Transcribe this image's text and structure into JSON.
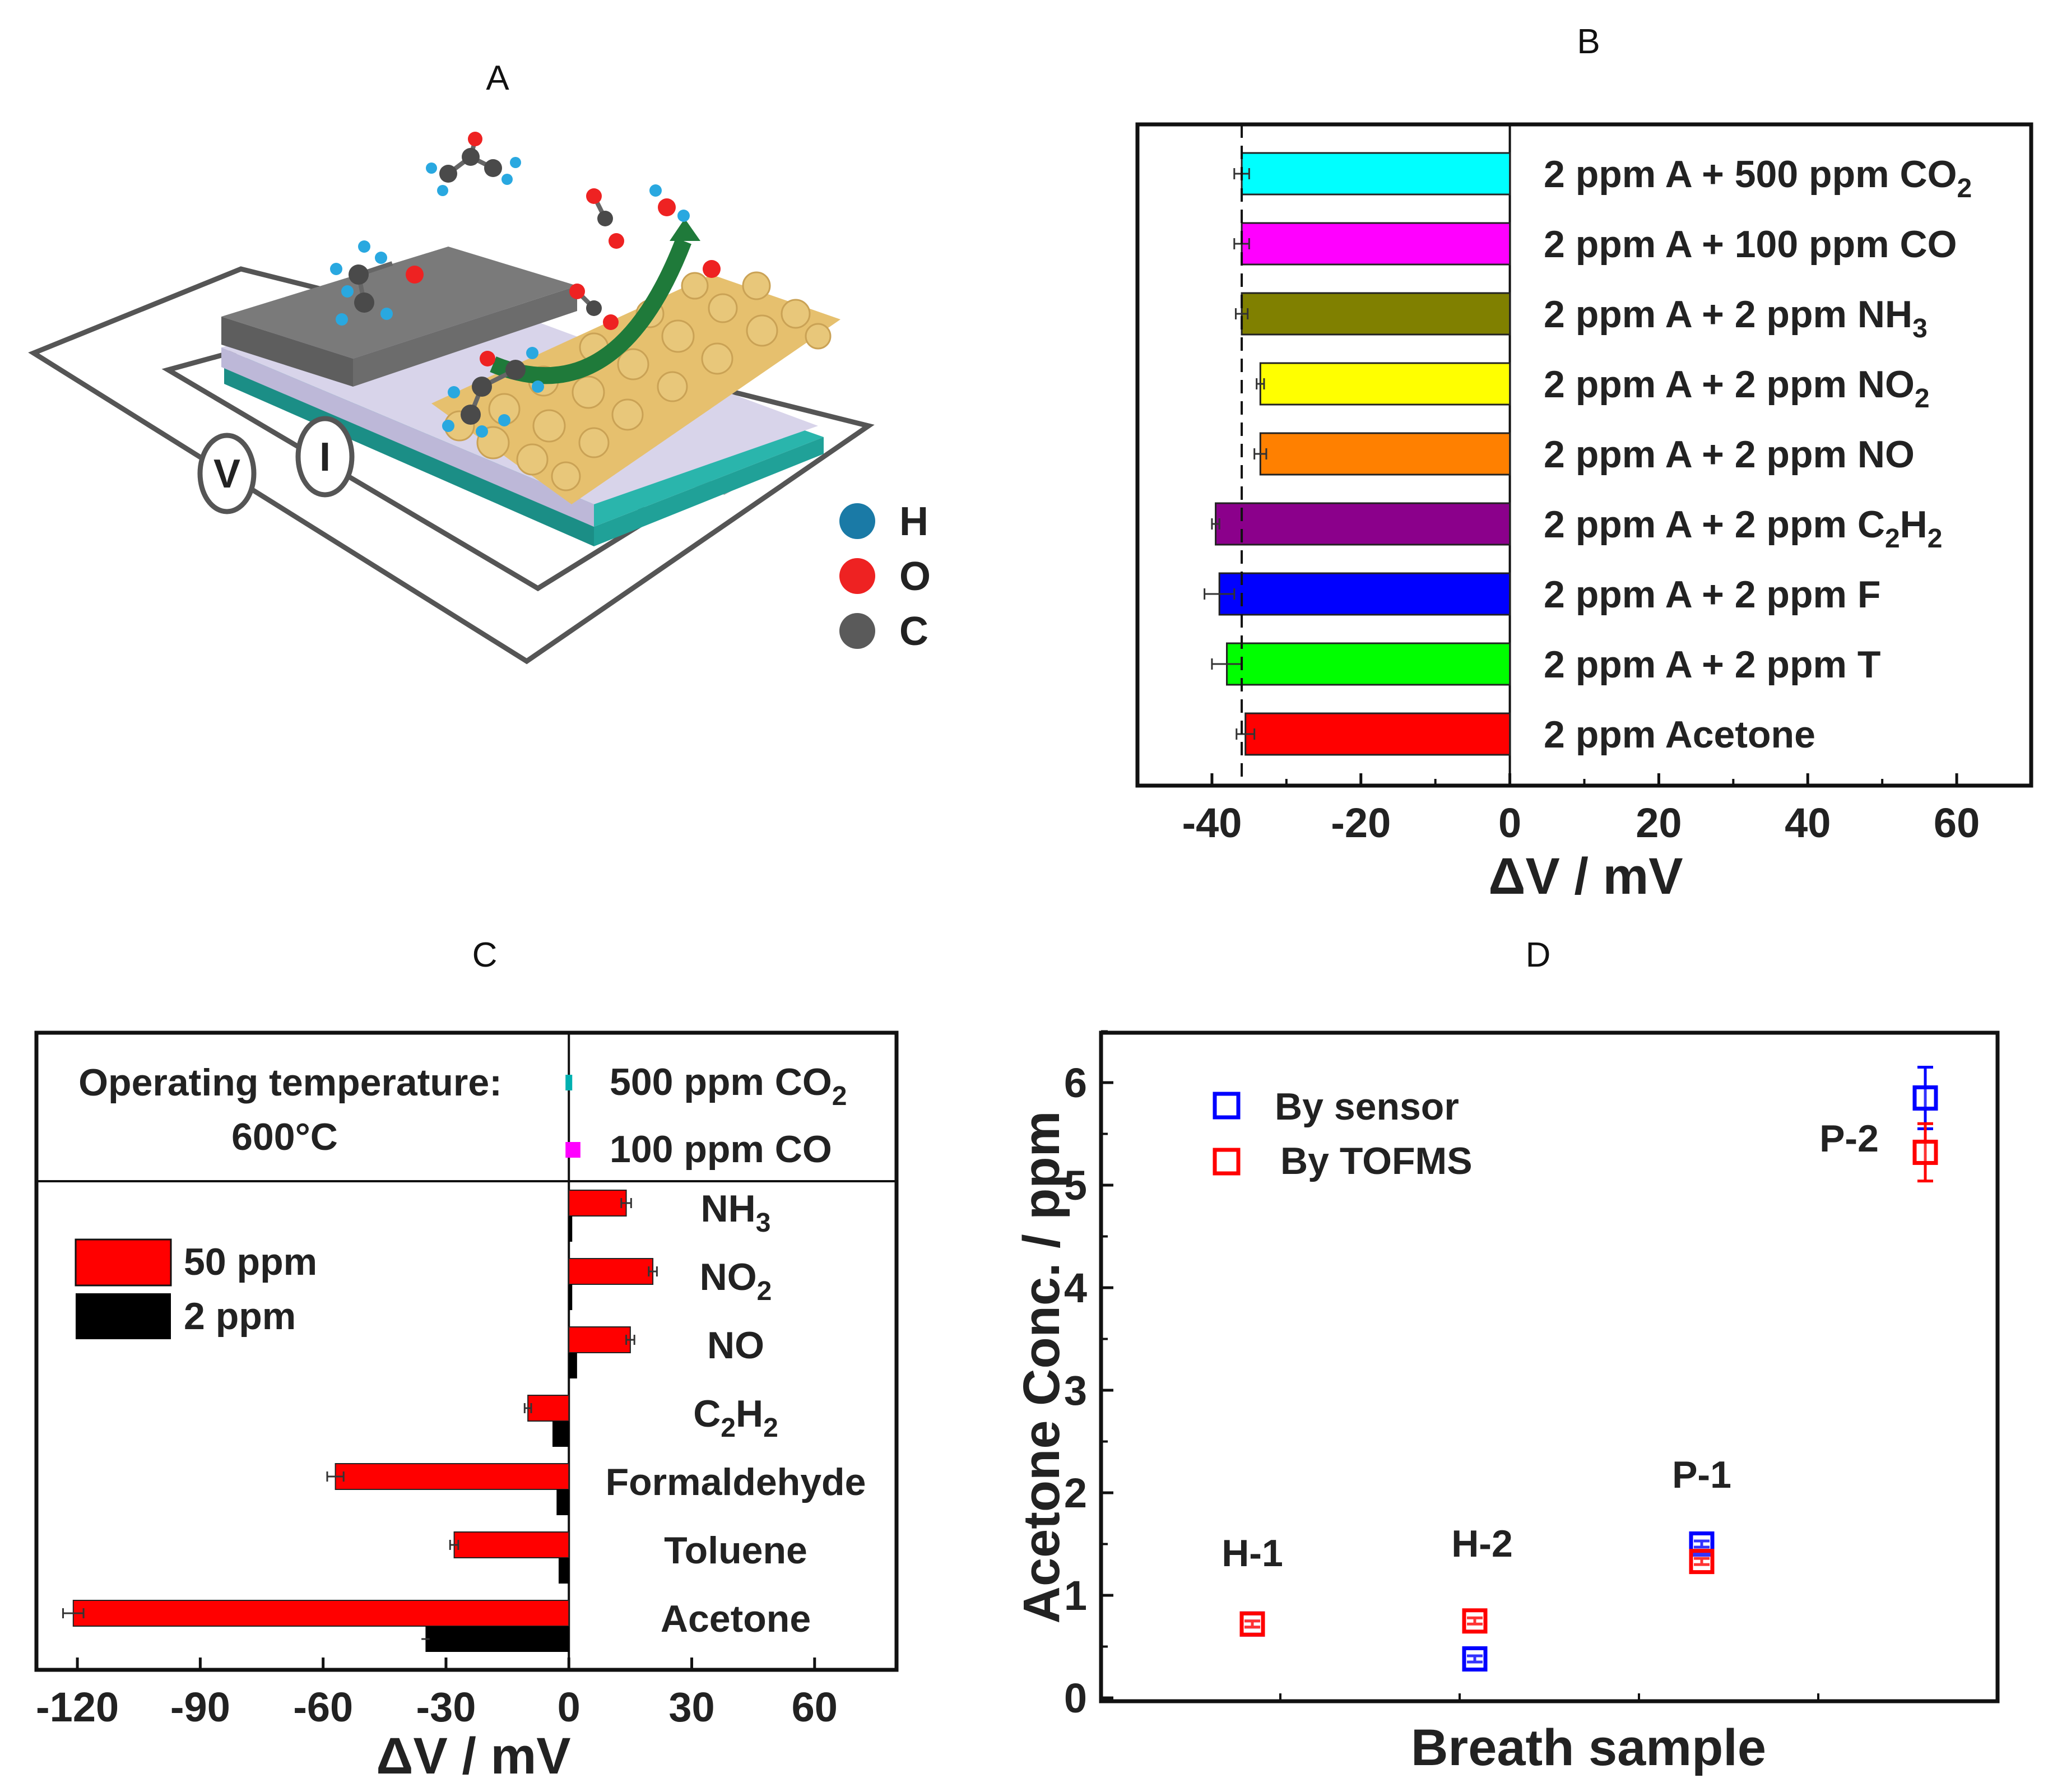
{
  "panels": {
    "A": {
      "label": "A",
      "legend": [
        {
          "symbol": "H",
          "color": "#1a7aa6"
        },
        {
          "symbol": "O",
          "color": "#ee2222"
        },
        {
          "symbol": "C",
          "color": "#5a5a5a"
        }
      ],
      "meters": [
        "V",
        "I"
      ]
    },
    "B": {
      "label": "B"
    },
    "C": {
      "label": "C"
    },
    "D": {
      "label": "D"
    }
  },
  "chart_data": [
    {
      "id": "B",
      "type": "bar",
      "orientation": "horizontal",
      "xlabel": "ΔV / mV",
      "xlim": [
        -50,
        70
      ],
      "xticks": [
        -40,
        -20,
        0,
        20,
        40,
        60
      ],
      "reference_line": -36,
      "categories": [
        {
          "label": "2 ppm A + 500 ppm CO",
          "sub": "2",
          "value": -36,
          "error": 1,
          "color": "#00ffff"
        },
        {
          "label": "2 ppm A + 100 ppm CO",
          "sub": "",
          "value": -36,
          "error": 1,
          "color": "#ff00ff"
        },
        {
          "label": "2 ppm A + 2 ppm NH",
          "sub": "3",
          "value": -36,
          "error": 0.8,
          "color": "#808000"
        },
        {
          "label": "2 ppm A + 2 ppm NO",
          "sub": "2",
          "value": -33.5,
          "error": 0.5,
          "color": "#ffff00"
        },
        {
          "label": "2 ppm A + 2 ppm NO",
          "sub": "",
          "value": -33.5,
          "error": 0.8,
          "color": "#ff8000"
        },
        {
          "label": "2 ppm A + 2 ppm C",
          "sub": "2",
          "label2": "H",
          "sub2": "2",
          "value": -39.5,
          "error": 0.5,
          "color": "#8b008b"
        },
        {
          "label": "2 ppm A + 2 ppm F",
          "sub": "",
          "value": -39,
          "error": 2,
          "color": "#0000ff"
        },
        {
          "label": "2 ppm A + 2 ppm T",
          "sub": "",
          "value": -38,
          "error": 2,
          "color": "#00ff00"
        },
        {
          "label": "2 ppm Acetone",
          "sub": "",
          "value": -35.5,
          "error": 1.2,
          "color": "#ff0000"
        }
      ]
    },
    {
      "id": "C",
      "type": "bar",
      "orientation": "horizontal",
      "xlabel": "ΔV / mV",
      "xlim": [
        -130,
        80
      ],
      "xticks": [
        -120,
        -90,
        -60,
        -30,
        0,
        30,
        60
      ],
      "annotation": [
        "Operating temperature:",
        "600°C"
      ],
      "series": [
        {
          "name": "50 ppm",
          "color": "#ff0000"
        },
        {
          "name": "2 ppm",
          "color": "#000000"
        }
      ],
      "interferents": [
        {
          "label": "500 ppm CO",
          "sub": "2",
          "value": 0,
          "color": "#00b0b0"
        },
        {
          "label": "100 ppm CO",
          "sub": "",
          "value": 2,
          "color": "#ff00ff"
        }
      ],
      "categories": [
        {
          "label": "NH",
          "sub": "3",
          "v50": 14,
          "e50": 1.2,
          "v2": 0.5
        },
        {
          "label": "NO",
          "sub": "2",
          "v50": 20.5,
          "e50": 1,
          "v2": 0.5
        },
        {
          "label": "NO",
          "sub": "",
          "v50": 15,
          "e50": 1,
          "v2": 2
        },
        {
          "label": "C",
          "sub": "2",
          "label2": "H",
          "sub2": "2",
          "v50": -10,
          "e50": 0.8,
          "v2": -4
        },
        {
          "label": "Formaldehyde",
          "sub": "",
          "v50": -57,
          "e50": 2,
          "v2": -3
        },
        {
          "label": "Toluene",
          "sub": "",
          "v50": -28,
          "e50": 1,
          "v2": -2.5
        },
        {
          "label": "Acetone",
          "sub": "",
          "v50": -121,
          "e50": 2.5,
          "v2": -35,
          "e2": 1
        }
      ]
    },
    {
      "id": "D",
      "type": "scatter",
      "xlabel": "Breath sample",
      "ylabel": "Acetone Conc. / ppm",
      "ylim": [
        0,
        6.5
      ],
      "yticks": [
        0,
        1,
        2,
        3,
        4,
        5,
        6
      ],
      "xlim": [
        0,
        5
      ],
      "series": [
        {
          "name": "By sensor",
          "color": "#0000ff"
        },
        {
          "name": "By TOFMS",
          "color": "#ff0000"
        }
      ],
      "samples": [
        {
          "label": "H-1",
          "x": 1,
          "sensor": 0.72,
          "sensor_err": 0.03,
          "tofms": 0.72,
          "tofms_err": 0.03
        },
        {
          "label": "H-2",
          "x": 2,
          "sensor": 0.38,
          "sensor_err": 0.03,
          "tofms": 0.75,
          "tofms_err": 0.03
        },
        {
          "label": "P-1",
          "x": 3,
          "sensor": 1.5,
          "sensor_err": 0.03,
          "tofms": 1.33,
          "tofms_err": 0.03
        },
        {
          "label": "P-2",
          "x": 4,
          "sensor": 5.85,
          "sensor_err": 0.3,
          "tofms": 5.32,
          "tofms_err": 0.28
        }
      ]
    }
  ]
}
